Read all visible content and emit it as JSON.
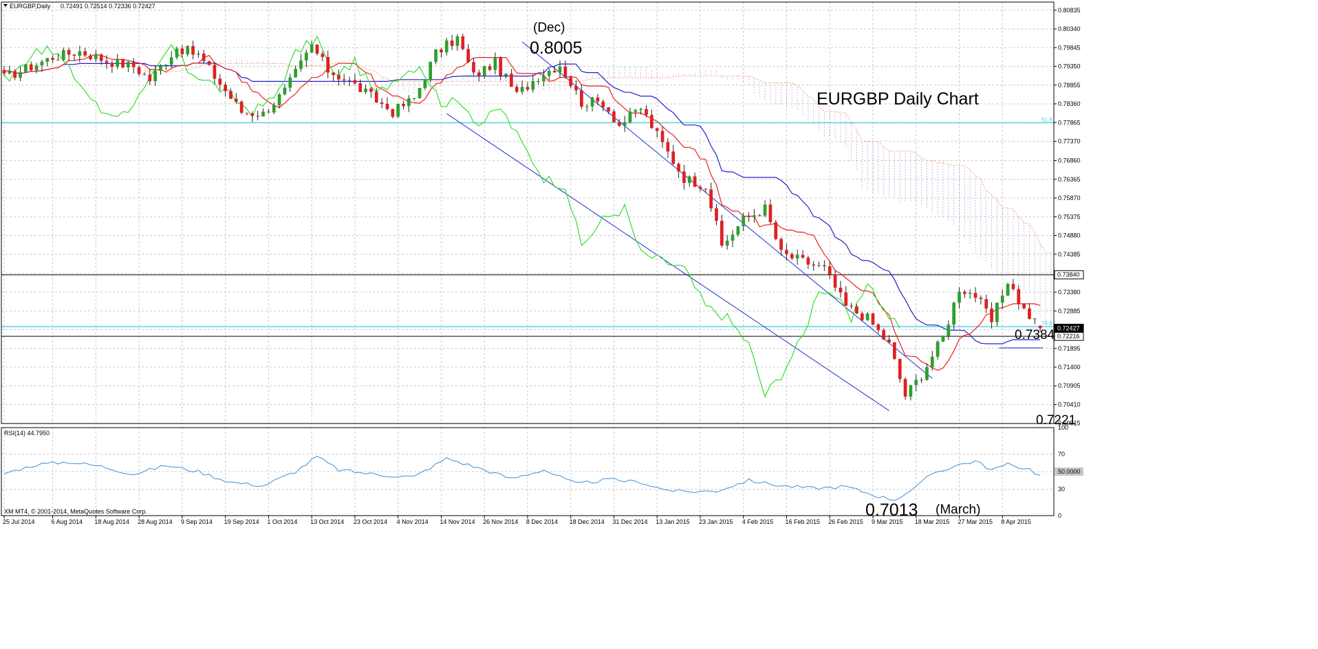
{
  "chart_data": {
    "type": "candlestick",
    "header": {
      "symbol_label": "EURGBP,Daily",
      "ohlc_text": "0.72491 0.72514 0.72336 0.72427"
    },
    "title": "EURGBP Daily Chart",
    "price_axis": {
      "ylim": [
        0.6991,
        0.8105
      ],
      "ticks": [
        "0.80835",
        "0.80340",
        "0.79845",
        "0.79350",
        "0.78855",
        "0.78360",
        "0.77865",
        "0.77370",
        "0.76860",
        "0.76365",
        "0.75870",
        "0.75375",
        "0.74880",
        "0.74385",
        "0.73880",
        "0.73380",
        "0.72885",
        "0.72390",
        "0.71895",
        "0.71400",
        "0.70905",
        "0.70410",
        "0.69915"
      ]
    },
    "date_labels": [
      {
        "label": "25 Jul 2014",
        "bar": 0
      },
      {
        "label": "6 Aug 2014",
        "bar": 9
      },
      {
        "label": "18 Aug 2014",
        "bar": 17
      },
      {
        "label": "28 Aug 2014",
        "bar": 25
      },
      {
        "label": "9 Sep 2014",
        "bar": 33
      },
      {
        "label": "19 Sep 2014",
        "bar": 41
      },
      {
        "label": "1 Oct 2014",
        "bar": 49
      },
      {
        "label": "13 Oct 2014",
        "bar": 57
      },
      {
        "label": "23 Oct 2014",
        "bar": 65
      },
      {
        "label": "4 Nov 2014",
        "bar": 73
      },
      {
        "label": "14 Nov 2014",
        "bar": 81
      },
      {
        "label": "26 Nov 2014",
        "bar": 89
      },
      {
        "label": "8 Dec 2014",
        "bar": 97
      },
      {
        "label": "18 Dec 2014",
        "bar": 105
      },
      {
        "label": "31 Dec 2014",
        "bar": 113
      },
      {
        "label": "13 Jan 2015",
        "bar": 121
      },
      {
        "label": "23 Jan 2015",
        "bar": 129
      },
      {
        "label": "4 Feb 2015",
        "bar": 137
      },
      {
        "label": "16 Feb 2015",
        "bar": 145
      },
      {
        "label": "26 Feb 2015",
        "bar": 153
      },
      {
        "label": "9 Mar 2015",
        "bar": 161
      },
      {
        "label": "18 Mar 2015",
        "bar": 169
      },
      {
        "label": "27 Mar 2015",
        "bar": 177
      },
      {
        "label": "8 Apr 2015",
        "bar": 185
      }
    ],
    "anchors": [
      {
        "bar": 0,
        "price": 0.7905
      },
      {
        "bar": 5,
        "price": 0.7935
      },
      {
        "bar": 9,
        "price": 0.796
      },
      {
        "bar": 14,
        "price": 0.7975
      },
      {
        "bar": 19,
        "price": 0.795
      },
      {
        "bar": 24,
        "price": 0.7935
      },
      {
        "bar": 27,
        "price": 0.79
      },
      {
        "bar": 32,
        "price": 0.7985
      },
      {
        "bar": 36,
        "price": 0.7965
      },
      {
        "bar": 40,
        "price": 0.789
      },
      {
        "bar": 44,
        "price": 0.7815
      },
      {
        "bar": 48,
        "price": 0.781
      },
      {
        "bar": 52,
        "price": 0.787
      },
      {
        "bar": 57,
        "price": 0.799
      },
      {
        "bar": 60,
        "price": 0.7925
      },
      {
        "bar": 64,
        "price": 0.7895
      },
      {
        "bar": 68,
        "price": 0.7855
      },
      {
        "bar": 72,
        "price": 0.7815
      },
      {
        "bar": 76,
        "price": 0.785
      },
      {
        "bar": 80,
        "price": 0.797
      },
      {
        "bar": 84,
        "price": 0.801
      },
      {
        "bar": 87,
        "price": 0.791
      },
      {
        "bar": 91,
        "price": 0.7945
      },
      {
        "bar": 95,
        "price": 0.786
      },
      {
        "bar": 99,
        "price": 0.791
      },
      {
        "bar": 103,
        "price": 0.794
      },
      {
        "bar": 107,
        "price": 0.784
      },
      {
        "bar": 111,
        "price": 0.784
      },
      {
        "bar": 114,
        "price": 0.778
      },
      {
        "bar": 118,
        "price": 0.7825
      },
      {
        "bar": 122,
        "price": 0.773
      },
      {
        "bar": 126,
        "price": 0.764
      },
      {
        "bar": 130,
        "price": 0.762
      },
      {
        "bar": 133,
        "price": 0.746
      },
      {
        "bar": 137,
        "price": 0.753
      },
      {
        "bar": 141,
        "price": 0.756
      },
      {
        "bar": 144,
        "price": 0.744
      },
      {
        "bar": 148,
        "price": 0.742
      },
      {
        "bar": 152,
        "price": 0.74
      },
      {
        "bar": 156,
        "price": 0.73
      },
      {
        "bar": 160,
        "price": 0.727
      },
      {
        "bar": 164,
        "price": 0.72
      },
      {
        "bar": 167,
        "price": 0.7065
      },
      {
        "bar": 170,
        "price": 0.712
      },
      {
        "bar": 174,
        "price": 0.722
      },
      {
        "bar": 177,
        "price": 0.735
      },
      {
        "bar": 180,
        "price": 0.733
      },
      {
        "bar": 183,
        "price": 0.726
      },
      {
        "bar": 186,
        "price": 0.737
      },
      {
        "bar": 189,
        "price": 0.729
      },
      {
        "bar": 192,
        "price": 0.7243
      }
    ],
    "horizontal_levels": [
      {
        "label": "0.73840",
        "price": 0.7384,
        "color": "#000000"
      },
      {
        "label": "0.72216",
        "price": 0.72216,
        "color": "#000000"
      },
      {
        "label": "0.72427",
        "price": 0.72427,
        "color": "#000000"
      }
    ],
    "fib_levels": [
      {
        "label": "61.8",
        "price": 0.7786
      },
      {
        "label": "78.6",
        "price": 0.7247
      }
    ],
    "annotations": {
      "dec_label": "(Dec)",
      "dec_high": "0.8005",
      "march_low": "0.7013",
      "march_label": "(March)",
      "level_high": "0.7384",
      "level_low": "0.7221"
    },
    "rsi": {
      "label": "RSI(14) 44.7950",
      "ticks": [
        "100",
        "70",
        "50.0000",
        "30",
        "0"
      ],
      "anchors": [
        {
          "bar": 0,
          "value": 48
        },
        {
          "bar": 6,
          "value": 58
        },
        {
          "bar": 12,
          "value": 61
        },
        {
          "bar": 18,
          "value": 56
        },
        {
          "bar": 24,
          "value": 47
        },
        {
          "bar": 30,
          "value": 57
        },
        {
          "bar": 36,
          "value": 50
        },
        {
          "bar": 42,
          "value": 38
        },
        {
          "bar": 48,
          "value": 34
        },
        {
          "bar": 54,
          "value": 50
        },
        {
          "bar": 58,
          "value": 67
        },
        {
          "bar": 62,
          "value": 52
        },
        {
          "bar": 70,
          "value": 46
        },
        {
          "bar": 76,
          "value": 44
        },
        {
          "bar": 82,
          "value": 65
        },
        {
          "bar": 88,
          "value": 54
        },
        {
          "bar": 94,
          "value": 42
        },
        {
          "bar": 100,
          "value": 52
        },
        {
          "bar": 106,
          "value": 36
        },
        {
          "bar": 112,
          "value": 41
        },
        {
          "bar": 118,
          "value": 38
        },
        {
          "bar": 122,
          "value": 30
        },
        {
          "bar": 126,
          "value": 27
        },
        {
          "bar": 132,
          "value": 28
        },
        {
          "bar": 138,
          "value": 40
        },
        {
          "bar": 144,
          "value": 34
        },
        {
          "bar": 150,
          "value": 31
        },
        {
          "bar": 156,
          "value": 33
        },
        {
          "bar": 162,
          "value": 22
        },
        {
          "bar": 165,
          "value": 18
        },
        {
          "bar": 169,
          "value": 32
        },
        {
          "bar": 172,
          "value": 48
        },
        {
          "bar": 177,
          "value": 58
        },
        {
          "bar": 180,
          "value": 62
        },
        {
          "bar": 183,
          "value": 52
        },
        {
          "bar": 186,
          "value": 58
        },
        {
          "bar": 190,
          "value": 53
        },
        {
          "bar": 192,
          "value": 45
        }
      ]
    },
    "colors": {
      "bull": "#2ca02c",
      "bear": "#e02020",
      "tenkan": "#e82020",
      "kijun": "#2020c8",
      "chikou": "#33dd33",
      "rsi": "#3a8fd8",
      "fib": "#5ad0e0",
      "cloud": "#b8a8d8",
      "cloud_edge": "#f4a070",
      "channel": "#2030d0"
    },
    "copyright": "XM MT4, © 2001-2014, MetaQuotes Software Corp."
  }
}
